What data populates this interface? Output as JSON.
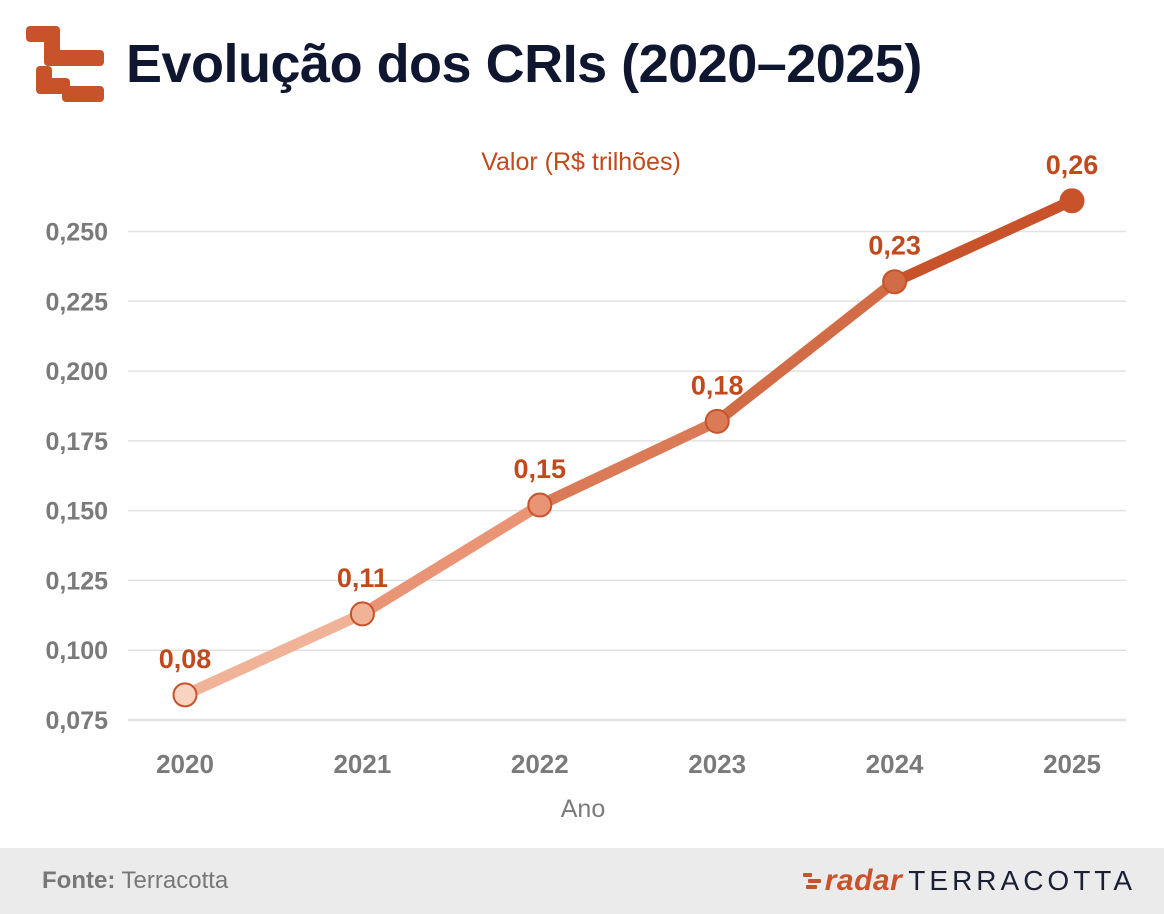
{
  "header": {
    "title": "Evolução dos CRIs (2020–2025)",
    "logo_icon": "terracotta-logo-icon"
  },
  "chart_data": {
    "type": "line",
    "title": "Evolução dos CRIs (2020–2025)",
    "series_label": "Valor (R$ trilhões)",
    "xlabel": "Ano",
    "ylabel": "",
    "categories": [
      "2020",
      "2021",
      "2022",
      "2023",
      "2024",
      "2025"
    ],
    "values": [
      0.084,
      0.113,
      0.152,
      0.182,
      0.232,
      0.261
    ],
    "data_labels": [
      "0,08",
      "0,11",
      "0,15",
      "0,18",
      "0,23",
      "0,26"
    ],
    "yticks": [
      0.075,
      0.1,
      0.125,
      0.15,
      0.175,
      0.2,
      0.225,
      0.25
    ],
    "ytick_labels": [
      "0,075",
      "0,100",
      "0,125",
      "0,150",
      "0,175",
      "0,200",
      "0,225",
      "0,250"
    ],
    "ylim": [
      0.075,
      0.262
    ],
    "grid": true,
    "colors": [
      "#f9d3c1",
      "#f0b397",
      "#e89475",
      "#db7a57",
      "#d26c47",
      "#c8522a"
    ],
    "marker_stroke": "#c8522a",
    "label_color": "#c04a1c",
    "axis_text_color": "#7a7a7a"
  },
  "footer": {
    "source_label": "Fonte:",
    "source_value": "Terracotta",
    "brand_radar": "radar",
    "brand_name": "TERRACOTTA"
  }
}
